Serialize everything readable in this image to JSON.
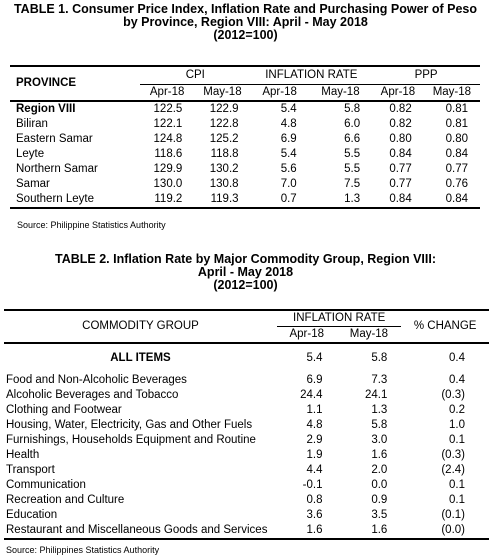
{
  "table1": {
    "title_line1": "TABLE 1. Consumer Price Index, Inflation Rate and Purchasing Power of Peso",
    "title_line2": "by Province, Region VIII: April - May 2018",
    "title_line3": "(2012=100)",
    "province_header": "PROVINCE",
    "groups": [
      "CPI",
      "INFLATION RATE",
      "PPP"
    ],
    "months": [
      "Apr-18",
      "May-18"
    ],
    "rows": [
      {
        "province": "Region VIII",
        "cpi_apr": "122.5",
        "cpi_may": "122.9",
        "inf_apr": "5.4",
        "inf_may": "5.8",
        "ppp_apr": "0.82",
        "ppp_may": "0.81"
      },
      {
        "province": "Biliran",
        "cpi_apr": "122.1",
        "cpi_may": "122.8",
        "inf_apr": "4.8",
        "inf_may": "6.0",
        "ppp_apr": "0.82",
        "ppp_may": "0.81"
      },
      {
        "province": "Eastern Samar",
        "cpi_apr": "124.8",
        "cpi_may": "125.2",
        "inf_apr": "6.9",
        "inf_may": "6.6",
        "ppp_apr": "0.80",
        "ppp_may": "0.80"
      },
      {
        "province": "Leyte",
        "cpi_apr": "118.6",
        "cpi_may": "118.8",
        "inf_apr": "5.4",
        "inf_may": "5.5",
        "ppp_apr": "0.84",
        "ppp_may": "0.84"
      },
      {
        "province": "Northern Samar",
        "cpi_apr": "129.9",
        "cpi_may": "130.2",
        "inf_apr": "5.6",
        "inf_may": "5.5",
        "ppp_apr": "0.77",
        "ppp_may": "0.77"
      },
      {
        "province": "Samar",
        "cpi_apr": "130.0",
        "cpi_may": "130.8",
        "inf_apr": "7.0",
        "inf_may": "7.5",
        "ppp_apr": "0.77",
        "ppp_may": "0.76"
      },
      {
        "province": "Southern Leyte",
        "cpi_apr": "119.2",
        "cpi_may": "119.3",
        "inf_apr": "0.7",
        "inf_may": "1.3",
        "ppp_apr": "0.84",
        "ppp_may": "0.84"
      }
    ],
    "source": "Source: Philippine Statistics Authority"
  },
  "table2": {
    "title_line1": "TABLE 2. Inflation Rate by Major Commodity Group, Region VIII:",
    "title_line2": "April - May 2018",
    "title_line3": "(2012=100)",
    "group_header": "COMMODITY GROUP",
    "inflation_header": "INFLATION RATE",
    "months": [
      "Apr-18",
      "May-18"
    ],
    "change_header": "% CHANGE",
    "all_items": {
      "label": "ALL ITEMS",
      "apr": "5.4",
      "may": "5.8",
      "change": "0.4"
    },
    "rows": [
      {
        "group": "Food and Non-Alcoholic Beverages",
        "apr": "6.9",
        "may": "7.3",
        "change": "0.4"
      },
      {
        "group": "Alcoholic Beverages and Tobacco",
        "apr": "24.4",
        "may": "24.1",
        "change": "(0.3)"
      },
      {
        "group": "Clothing and Footwear",
        "apr": "1.1",
        "may": "1.3",
        "change": "0.2"
      },
      {
        "group": "Housing, Water, Electricity, Gas and Other Fuels",
        "apr": "4.8",
        "may": "5.8",
        "change": "1.0"
      },
      {
        "group": "Furnishings, Households Equipment and Routine",
        "apr": "2.9",
        "may": "3.0",
        "change": "0.1"
      },
      {
        "group": "Health",
        "apr": "1.9",
        "may": "1.6",
        "change": "(0.3)"
      },
      {
        "group": "Transport",
        "apr": "4.4",
        "may": "2.0",
        "change": "(2.4)"
      },
      {
        "group": "Communication",
        "apr": "-0.1",
        "may": "0.0",
        "change": "0.1"
      },
      {
        "group": "Recreation and Culture",
        "apr": "0.8",
        "may": "0.9",
        "change": "0.1"
      },
      {
        "group": "Education",
        "apr": "3.6",
        "may": "3.5",
        "change": "(0.1)"
      },
      {
        "group": "Restaurant and Miscellaneous Goods and Services",
        "apr": "1.6",
        "may": "1.6",
        "change": "(0.0)"
      }
    ],
    "source": "Source: Philippines Statistics Authority"
  }
}
